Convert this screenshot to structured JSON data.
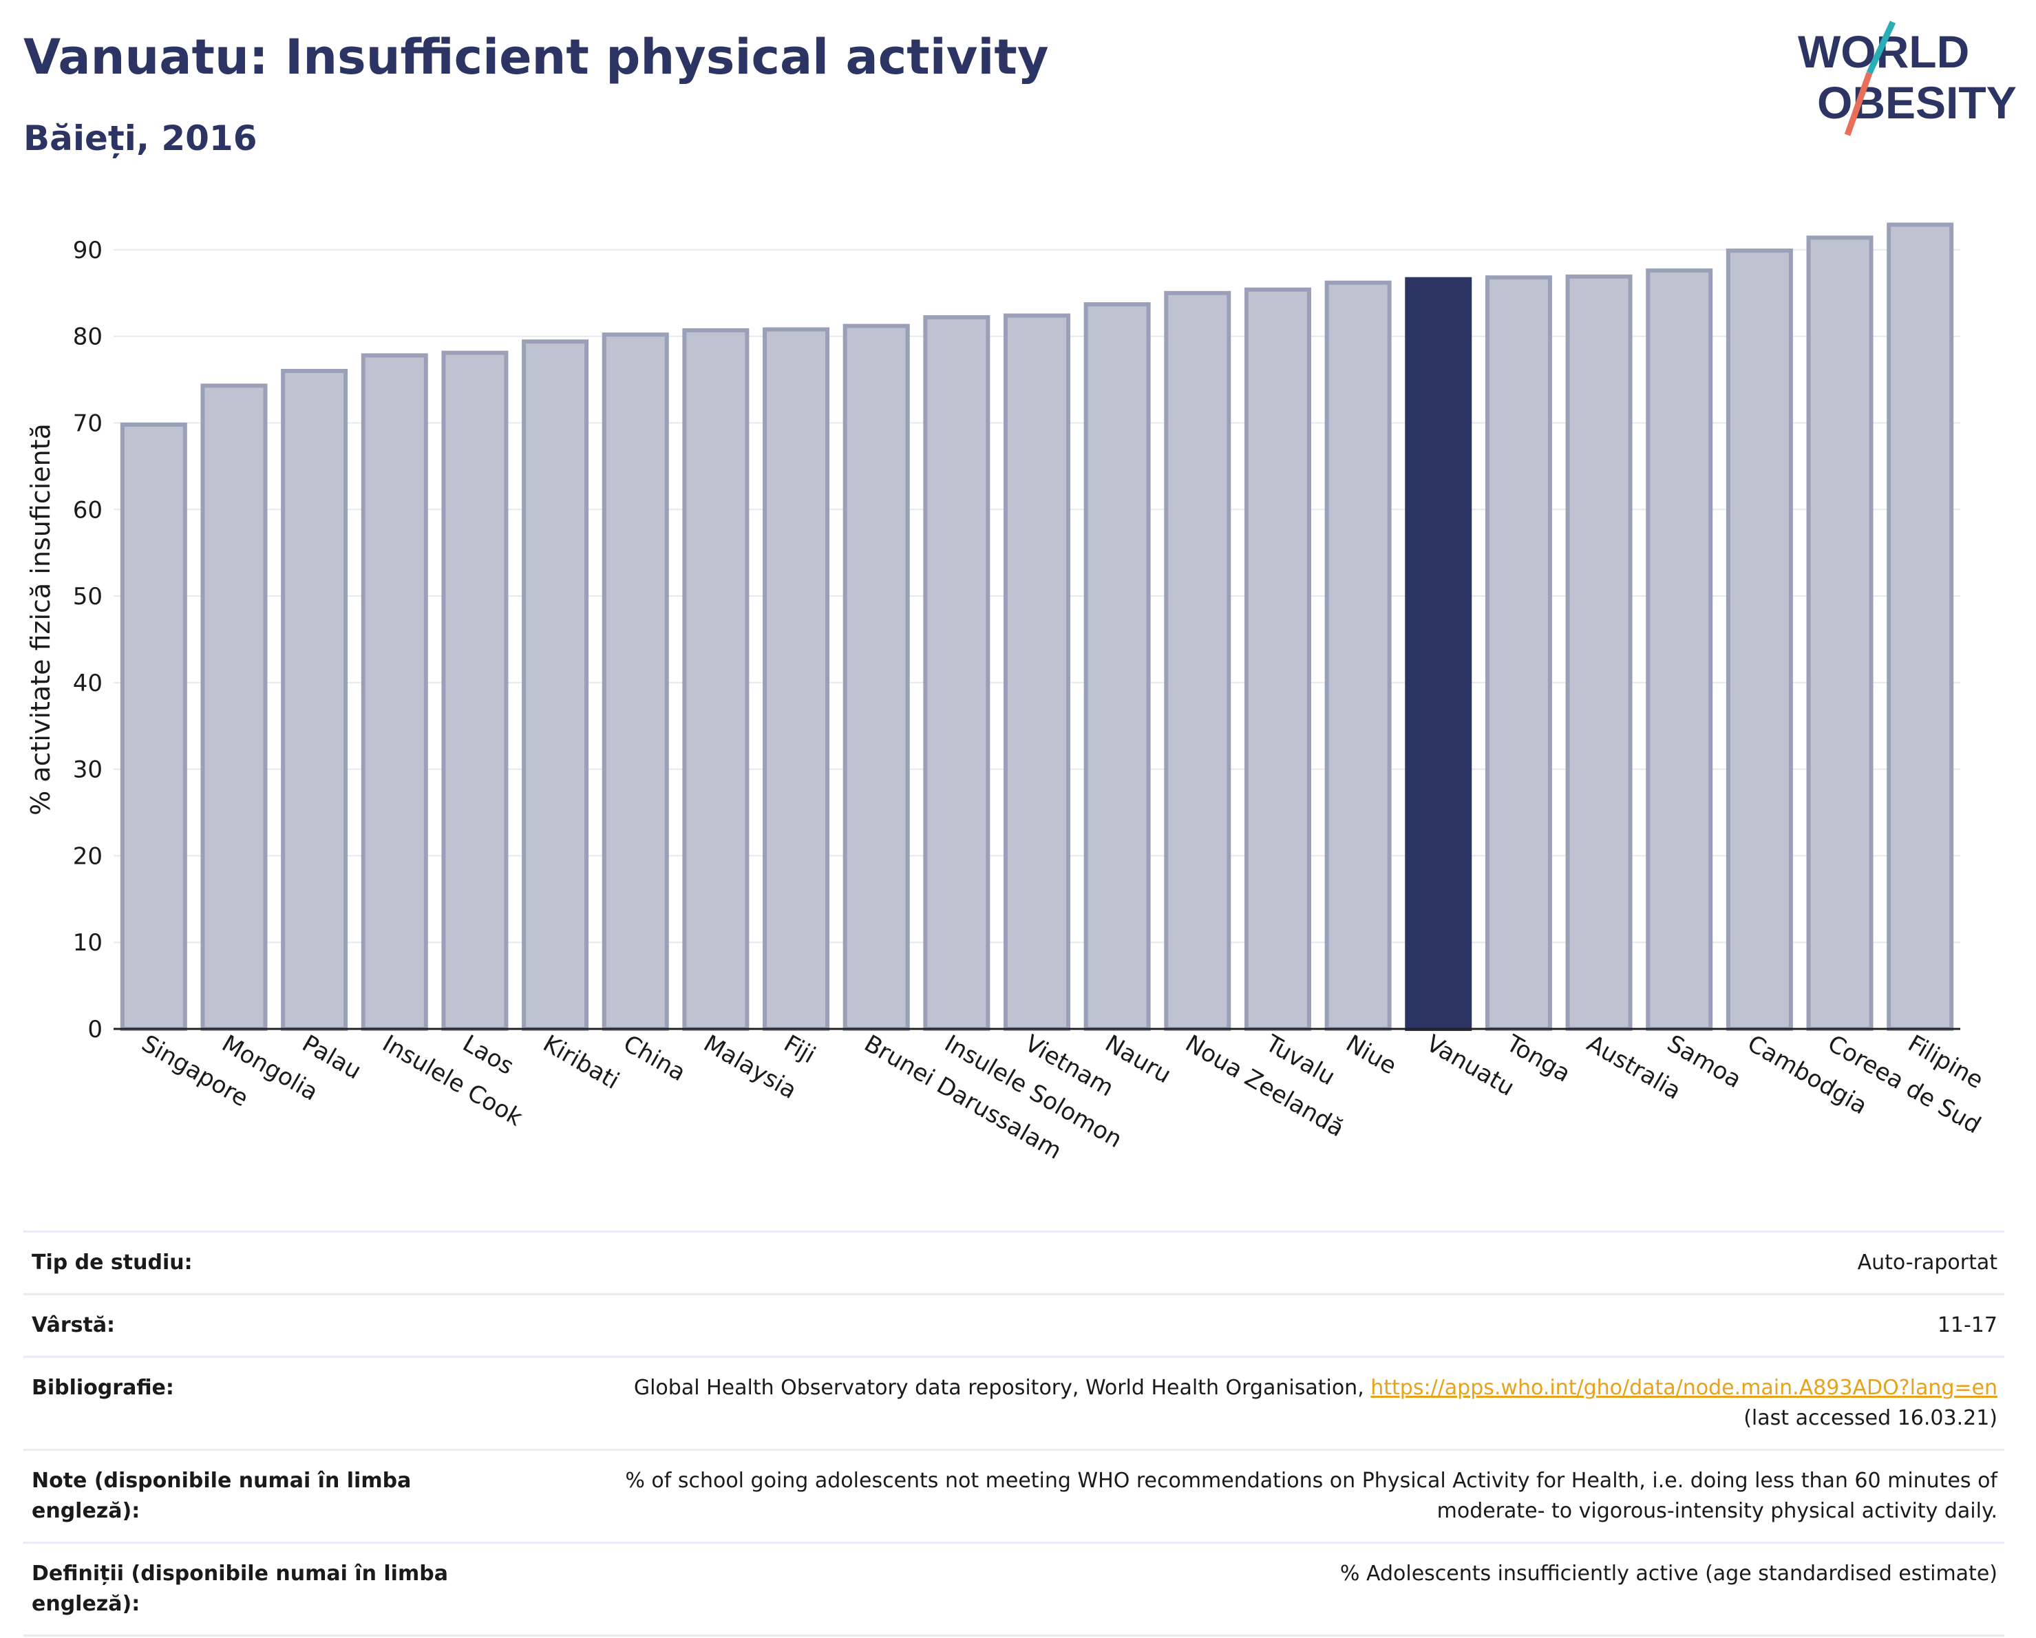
{
  "header": {
    "title": "Vanuatu: Insufficient physical activity",
    "subtitle": "Băieți, 2016"
  },
  "logo": {
    "line1": "WORLD",
    "line2": "OBESITY",
    "colors": {
      "text": "#2b3462",
      "slash_teal": "#2aaeb5",
      "slash_coral": "#e8705a"
    }
  },
  "chart_data": {
    "type": "bar",
    "ylabel": "% activitate fizică insuficientă",
    "ylim": [
      0,
      95
    ],
    "yticks": [
      0,
      10,
      20,
      30,
      40,
      50,
      60,
      70,
      80,
      90
    ],
    "grid": true,
    "highlight": "Vanuatu",
    "colors": {
      "bar": "#bfc3d1",
      "bar_border": "#9aa0b8",
      "highlight": "#2b3462"
    },
    "categories": [
      "Singapore",
      "Mongolia",
      "Palau",
      "Insulele Cook",
      "Laos",
      "Kiribati",
      "China",
      "Malaysia",
      "Fiji",
      "Brunei Darussalam",
      "Insulele Solomon",
      "Vietnam",
      "Nauru",
      "Noua Zeelandă",
      "Tuvalu",
      "Niue",
      "Vanuatu",
      "Tonga",
      "Australia",
      "Samoa",
      "Cambodgia",
      "Coreea de Sud",
      "Filipine"
    ],
    "values": [
      69.8,
      74.3,
      76.0,
      77.8,
      78.1,
      79.4,
      80.2,
      80.7,
      80.8,
      81.2,
      82.2,
      82.4,
      83.7,
      85.0,
      85.4,
      86.2,
      86.6,
      86.8,
      86.9,
      87.6,
      89.9,
      91.4,
      92.9
    ]
  },
  "info": [
    {
      "key": "Tip de studiu:",
      "value": "Auto-raportat"
    },
    {
      "key": "Vârstă:",
      "value": "11-17"
    },
    {
      "key": "Bibliografie:",
      "value": "Global Health Observatory data repository, World Health Organisation, ",
      "link": "https://apps.who.int/gho/data/node.main.A893ADO?lang=en",
      "value2": "(last accessed 16.03.21)"
    },
    {
      "key": "Note (disponibile numai în limba engleză):",
      "value": "% of school going adolescents not meeting WHO recommendations on Physical Activity for Health, i.e. doing less than 60 minutes of moderate- to vigorous-intensity physical activity daily."
    },
    {
      "key": "Definiții (disponibile numai în limba engleză):",
      "value": "% Adolescents insufficiently active (age standardised estimate)"
    }
  ]
}
